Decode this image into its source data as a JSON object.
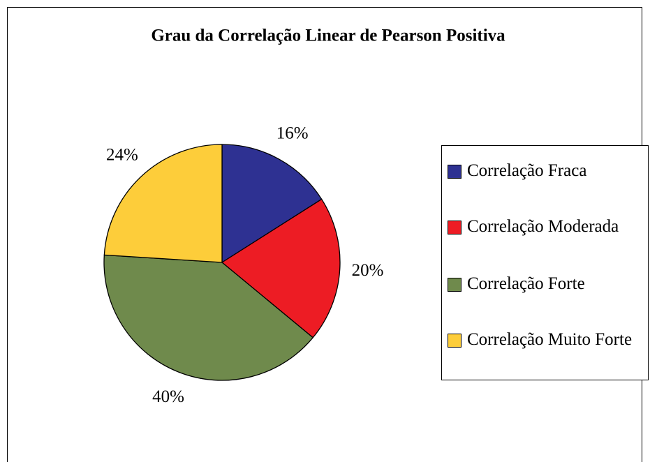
{
  "chart_data": {
    "type": "pie",
    "title": "Grau da Correlação Linear de Pearson Positiva",
    "categories": [
      "Correlação Fraca",
      "Correlação Moderada",
      "Correlação Forte",
      "Correlação Muito Forte"
    ],
    "values": [
      16,
      20,
      40,
      24
    ],
    "value_labels": [
      "16%",
      "20%",
      "40%",
      "24%"
    ],
    "colors": [
      "#2e3192",
      "#ed1c24",
      "#6f8a4c",
      "#fdcd3a"
    ],
    "legend": "right"
  }
}
